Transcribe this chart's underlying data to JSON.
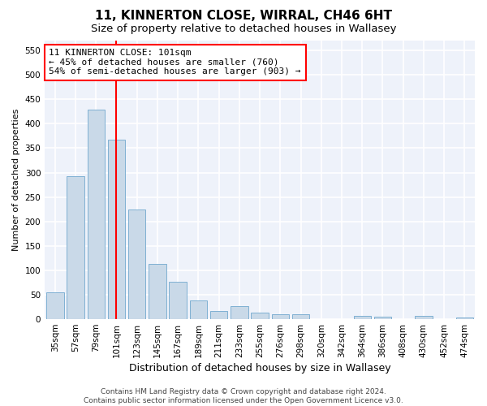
{
  "title1": "11, KINNERTON CLOSE, WIRRAL, CH46 6HT",
  "title2": "Size of property relative to detached houses in Wallasey",
  "xlabel": "Distribution of detached houses by size in Wallasey",
  "ylabel": "Number of detached properties",
  "categories": [
    "35sqm",
    "57sqm",
    "79sqm",
    "101sqm",
    "123sqm",
    "145sqm",
    "167sqm",
    "189sqm",
    "211sqm",
    "233sqm",
    "255sqm",
    "276sqm",
    "298sqm",
    "320sqm",
    "342sqm",
    "364sqm",
    "386sqm",
    "408sqm",
    "430sqm",
    "452sqm",
    "474sqm"
  ],
  "values": [
    55,
    292,
    428,
    367,
    225,
    113,
    76,
    38,
    17,
    27,
    14,
    10,
    10,
    0,
    0,
    6,
    5,
    0,
    6,
    0,
    4
  ],
  "bar_color": "#c9d9e8",
  "bar_edge_color": "#7fb0d3",
  "vline_x_idx": 3,
  "vline_color": "red",
  "annotation_line1": "11 KINNERTON CLOSE: 101sqm",
  "annotation_line2": "← 45% of detached houses are smaller (760)",
  "annotation_line3": "54% of semi-detached houses are larger (903) →",
  "annotation_box_color": "white",
  "annotation_box_edge": "red",
  "ylim": [
    0,
    570
  ],
  "yticks": [
    0,
    50,
    100,
    150,
    200,
    250,
    300,
    350,
    400,
    450,
    500,
    550
  ],
  "footer1": "Contains HM Land Registry data © Crown copyright and database right 2024.",
  "footer2": "Contains public sector information licensed under the Open Government Licence v3.0.",
  "bg_color": "#eef2fa",
  "grid_color": "white",
  "title1_fontsize": 11,
  "title2_fontsize": 9.5,
  "xlabel_fontsize": 9,
  "ylabel_fontsize": 8,
  "tick_fontsize": 7.5,
  "footer_fontsize": 6.5,
  "annotation_fontsize": 8
}
